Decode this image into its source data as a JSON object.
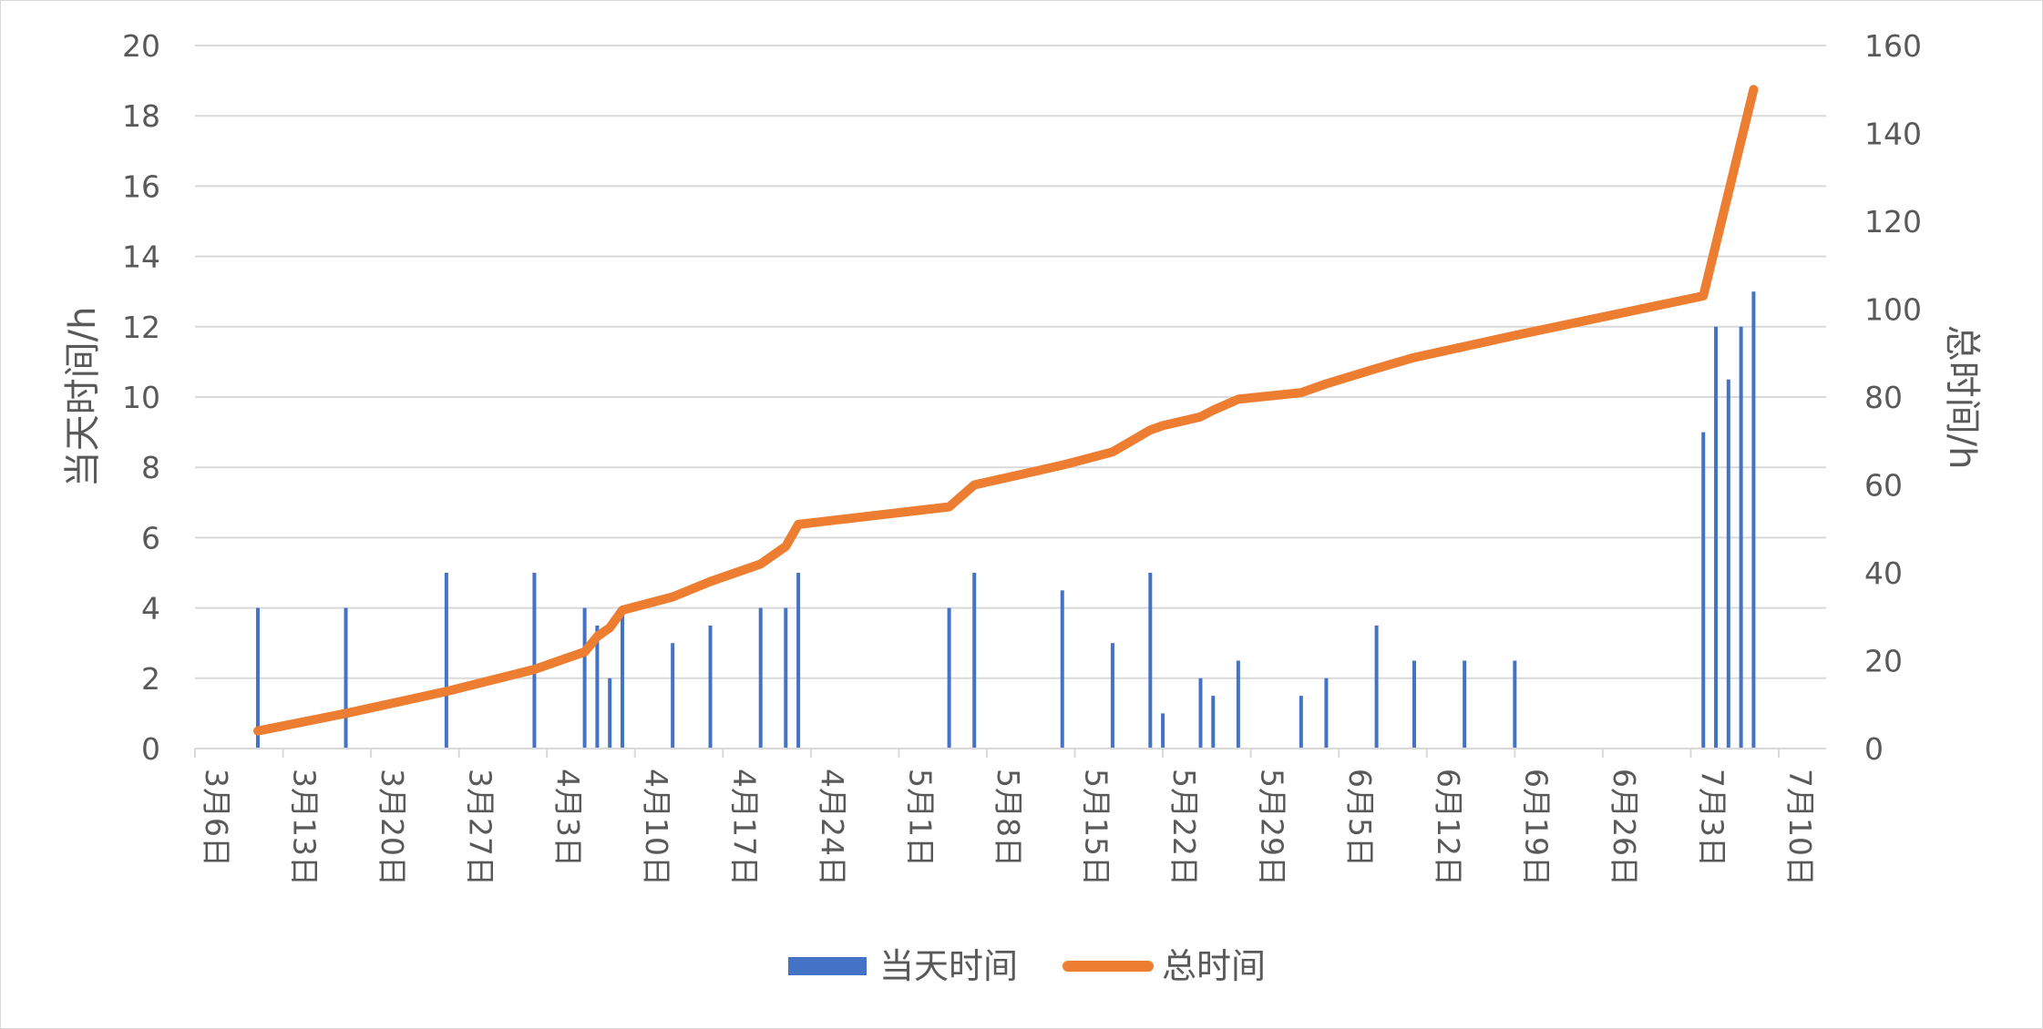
{
  "chart_data": {
    "type": "bar+line",
    "title": "",
    "y_left": {
      "label": "当天时间/h",
      "range": [
        0,
        20
      ],
      "ticks": [
        "0",
        "2",
        "4",
        "6",
        "8",
        "10",
        "12",
        "14",
        "16",
        "18",
        "20"
      ]
    },
    "y_right": {
      "label": "总时间/h",
      "range": [
        0,
        160
      ],
      "ticks": [
        "0",
        "20",
        "40",
        "60",
        "80",
        "100",
        "120",
        "140",
        "160"
      ]
    },
    "x_axis": {
      "type": "date",
      "range": [
        "3月6日",
        "7月10日"
      ],
      "ticks": [
        "3月6日",
        "3月13日",
        "3月20日",
        "3月27日",
        "4月3日",
        "4月10日",
        "4月17日",
        "4月24日",
        "5月1日",
        "5月8日",
        "5月15日",
        "5月22日",
        "5月29日",
        "6月5日",
        "6月12日",
        "6月19日",
        "6月26日",
        "7月3日",
        "7月10日"
      ]
    },
    "grid": true,
    "legend_position": "bottom",
    "series": [
      {
        "name": "当天时间",
        "type": "bar",
        "axis": "left",
        "color": "#4472C4",
        "points": [
          {
            "x": "3月11日",
            "y": 4
          },
          {
            "x": "3月18日",
            "y": 4
          },
          {
            "x": "3月26日",
            "y": 5
          },
          {
            "x": "4月2日",
            "y": 5
          },
          {
            "x": "4月6日",
            "y": 4
          },
          {
            "x": "4月7日",
            "y": 3.5
          },
          {
            "x": "4月8日",
            "y": 2
          },
          {
            "x": "4月9日",
            "y": 4
          },
          {
            "x": "4月13日",
            "y": 3
          },
          {
            "x": "4月16日",
            "y": 3.5
          },
          {
            "x": "4月20日",
            "y": 4
          },
          {
            "x": "4月22日",
            "y": 4
          },
          {
            "x": "4月23日",
            "y": 5
          },
          {
            "x": "5月5日",
            "y": 4
          },
          {
            "x": "5月7日",
            "y": 5
          },
          {
            "x": "5月14日",
            "y": 4.5
          },
          {
            "x": "5月18日",
            "y": 3
          },
          {
            "x": "5月21日",
            "y": 5
          },
          {
            "x": "5月22日",
            "y": 1
          },
          {
            "x": "5月25日",
            "y": 2
          },
          {
            "x": "5月26日",
            "y": 1.5
          },
          {
            "x": "5月28日",
            "y": 2.5
          },
          {
            "x": "6月2日",
            "y": 1.5
          },
          {
            "x": "6月4日",
            "y": 2
          },
          {
            "x": "6月8日",
            "y": 3.5
          },
          {
            "x": "6月11日",
            "y": 2.5
          },
          {
            "x": "6月15日",
            "y": 2.5
          },
          {
            "x": "6月19日",
            "y": 2.5
          },
          {
            "x": "7月4日",
            "y": 9
          },
          {
            "x": "7月5日",
            "y": 12
          },
          {
            "x": "7月6日",
            "y": 10.5
          },
          {
            "x": "7月7日",
            "y": 12
          },
          {
            "x": "7月8日",
            "y": 13
          }
        ]
      },
      {
        "name": "总时间",
        "type": "line",
        "axis": "right",
        "color": "#ED7D31",
        "points": [
          {
            "x": "3月11日",
            "y": 4
          },
          {
            "x": "3月18日",
            "y": 8
          },
          {
            "x": "3月26日",
            "y": 13
          },
          {
            "x": "4月2日",
            "y": 18
          },
          {
            "x": "4月6日",
            "y": 22
          },
          {
            "x": "4月7日",
            "y": 25.5
          },
          {
            "x": "4月8日",
            "y": 27.5
          },
          {
            "x": "4月9日",
            "y": 31.5
          },
          {
            "x": "4月13日",
            "y": 34.5
          },
          {
            "x": "4月16日",
            "y": 38
          },
          {
            "x": "4月20日",
            "y": 42
          },
          {
            "x": "4月22日",
            "y": 46
          },
          {
            "x": "4月23日",
            "y": 51
          },
          {
            "x": "5月5日",
            "y": 55
          },
          {
            "x": "5月7日",
            "y": 60
          },
          {
            "x": "5月14日",
            "y": 64.5
          },
          {
            "x": "5月18日",
            "y": 67.5
          },
          {
            "x": "5月21日",
            "y": 72.5
          },
          {
            "x": "5月22日",
            "y": 73.5
          },
          {
            "x": "5月25日",
            "y": 75.5
          },
          {
            "x": "5月26日",
            "y": 77
          },
          {
            "x": "5月28日",
            "y": 79.5
          },
          {
            "x": "6月2日",
            "y": 81
          },
          {
            "x": "6月4日",
            "y": 83
          },
          {
            "x": "6月8日",
            "y": 86.5
          },
          {
            "x": "6月11日",
            "y": 89
          },
          {
            "x": "6月15日",
            "y": 91.5
          },
          {
            "x": "6月19日",
            "y": 94
          },
          {
            "x": "7月4日",
            "y": 103
          },
          {
            "x": "7月8日",
            "y": 150
          }
        ]
      }
    ]
  }
}
